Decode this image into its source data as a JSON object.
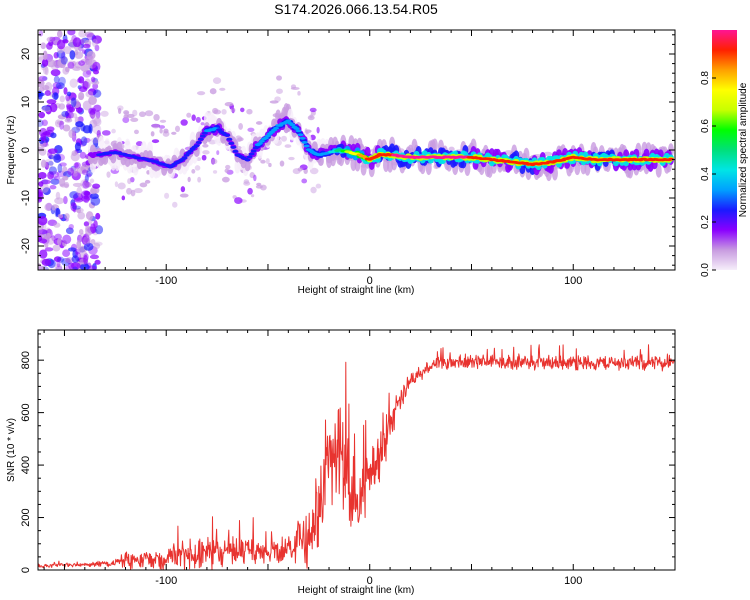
{
  "title": "S174.2026.066.13.54.R05",
  "colors": {
    "snr_line": "#e8332f",
    "axis": "#000000"
  },
  "chart_data": [
    {
      "type": "heatmap",
      "name": "spectrogram",
      "xlabel": "Height of straight line (km)",
      "ylabel": "Frequency (Hz)",
      "xlim": [
        -163,
        150
      ],
      "ylim": [
        -25,
        25
      ],
      "x_tick_labels": [
        {
          "value": -100,
          "label": "-100"
        },
        {
          "value": 0,
          "label": "0"
        },
        {
          "value": 100,
          "label": "100"
        }
      ],
      "y_tick_labels": [
        {
          "value": 20,
          "label": "20"
        },
        {
          "value": 10,
          "label": "10"
        },
        {
          "value": 0,
          "label": "0"
        },
        {
          "value": -10,
          "label": "-10"
        },
        {
          "value": -20,
          "label": "-20"
        }
      ],
      "ridge": {
        "height_km": [
          -135,
          -125,
          -115,
          -105,
          -98,
          -92,
          -85,
          -80,
          -75,
          -70,
          -65,
          -60,
          -55,
          -50,
          -45,
          -40,
          -35,
          -30,
          -25,
          -20,
          -15,
          -10,
          -5,
          0,
          5,
          10,
          20,
          30,
          40,
          50,
          60,
          70,
          80,
          90,
          100,
          110,
          120,
          130,
          145
        ],
        "freq_hz": [
          -1,
          -0.5,
          -1.5,
          -2.5,
          -3.5,
          -2,
          1,
          4,
          4.5,
          3,
          -1,
          -2,
          1,
          3,
          5,
          6,
          4,
          0,
          -1,
          -0.5,
          0,
          -0.5,
          -1,
          -2,
          -1,
          -1,
          -1.5,
          -1.5,
          -1.5,
          -1.5,
          -2,
          -2.5,
          -3,
          -2.5,
          -1.5,
          -2,
          -2,
          -2,
          -2
        ],
        "amplitude": [
          0.2,
          0.25,
          0.25,
          0.25,
          0.25,
          0.25,
          0.25,
          0.3,
          0.3,
          0.25,
          0.25,
          0.25,
          0.3,
          0.3,
          0.35,
          0.35,
          0.3,
          0.3,
          0.3,
          0.35,
          0.5,
          0.7,
          0.8,
          0.9,
          0.95,
          0.95,
          1,
          1,
          1,
          0.95,
          0.9,
          0.95,
          0.95,
          0.9,
          0.9,
          0.95,
          0.95,
          0.9,
          0.9
        ]
      },
      "colorbar": {
        "label": "Normalized spectral amplitude",
        "range": [
          0,
          1
        ],
        "tick_labels": [
          {
            "value": 0.0,
            "label": "0.0"
          },
          {
            "value": 0.2,
            "label": "0.2"
          },
          {
            "value": 0.4,
            "label": "0.4"
          },
          {
            "value": 0.6,
            "label": "0.6"
          },
          {
            "value": 0.8,
            "label": "0.8"
          }
        ],
        "colors": [
          "#f6eefa",
          "#c89be0",
          "#8a00ff",
          "#1a1aff",
          "#00a0ff",
          "#00e5e5",
          "#00e07a",
          "#00ff00",
          "#c8ff00",
          "#ffff00",
          "#ffa000",
          "#ff2000",
          "#ff1493"
        ]
      }
    },
    {
      "type": "line",
      "name": "snr",
      "xlabel": "Height of straight line (km)",
      "ylabel": "SNR (10 * v/v)",
      "xlim": [
        -163,
        150
      ],
      "ylim": [
        0,
        915
      ],
      "x_tick_labels": [
        {
          "value": -100,
          "label": "-100"
        },
        {
          "value": 0,
          "label": "0"
        },
        {
          "value": 100,
          "label": "100"
        }
      ],
      "y_tick_labels": [
        {
          "value": 0,
          "label": "0"
        },
        {
          "value": 200,
          "label": "200"
        },
        {
          "value": 400,
          "label": "400"
        },
        {
          "value": 600,
          "label": "600"
        },
        {
          "value": 800,
          "label": "800"
        }
      ],
      "envelope": {
        "height_km": [
          -163,
          -140,
          -125,
          -120,
          -110,
          -100,
          -90,
          -80,
          -70,
          -60,
          -50,
          -40,
          -30,
          -25,
          -20,
          -15,
          -10,
          -5,
          0,
          5,
          10,
          15,
          20,
          25,
          30,
          40,
          60,
          80,
          100,
          120,
          150
        ],
        "mean": [
          15,
          20,
          25,
          35,
          40,
          45,
          60,
          65,
          75,
          70,
          70,
          80,
          120,
          250,
          420,
          480,
          320,
          250,
          380,
          430,
          560,
          660,
          720,
          760,
          780,
          790,
          795,
          790,
          790,
          790,
          790
        ],
        "spread": [
          10,
          10,
          15,
          40,
          50,
          60,
          70,
          80,
          90,
          60,
          50,
          70,
          150,
          180,
          220,
          250,
          200,
          150,
          150,
          120,
          80,
          60,
          50,
          40,
          35,
          35,
          35,
          35,
          35,
          35,
          35
        ]
      }
    }
  ]
}
